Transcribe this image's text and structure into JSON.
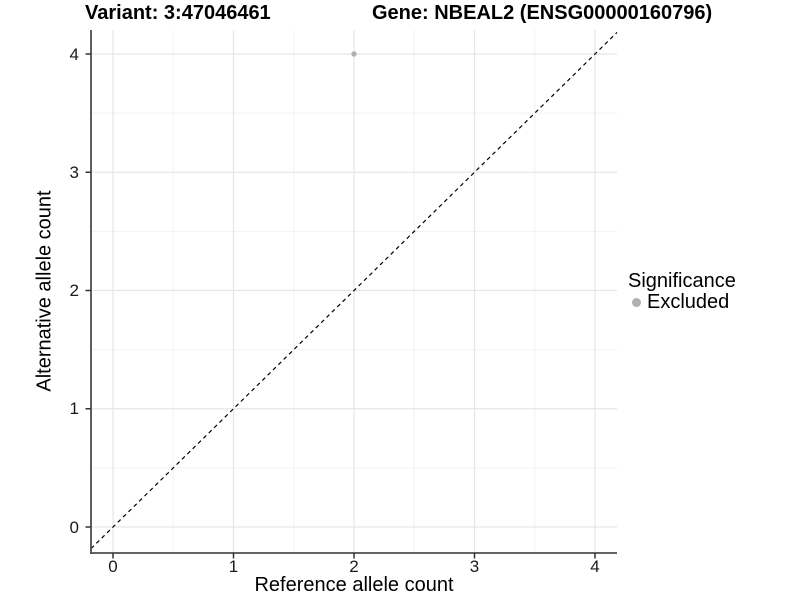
{
  "chart_data": {
    "type": "scatter",
    "titles": {
      "left": "Variant: 3:47046461",
      "right": "Gene: NBEAL2 (ENSG00000160796)"
    },
    "xlabel": "Reference allele count",
    "ylabel": "Alternative allele count",
    "xlim": [
      -0.2,
      4.2
    ],
    "ylim": [
      -0.2,
      4.2
    ],
    "x_ticks": [
      0,
      1,
      2,
      3,
      4
    ],
    "y_ticks": [
      0,
      1,
      2,
      3,
      4
    ],
    "x_minor_ticks": [
      0.5,
      1.5,
      2.5,
      3.5
    ],
    "y_minor_ticks": [
      0.5,
      1.5,
      2.5,
      3.5
    ],
    "grid": "major+minor",
    "reference_line": {
      "type": "identity y=x",
      "style": "dashed",
      "color": "#000000"
    },
    "points": [
      {
        "x": 2,
        "y": 4,
        "significance": "Excluded"
      }
    ],
    "legend": {
      "title": "Significance",
      "position": "right",
      "entries": [
        {
          "label": "Excluded",
          "marker": "circle",
          "color": "#b0b0b0"
        }
      ]
    },
    "colors": {
      "background": "#ffffff",
      "grid_major": "#e6e6e6",
      "grid_minor": "#f2f2f2",
      "axis_line": "#4d4d4d",
      "tick_mark": "#333333",
      "point": "#b0b0b0"
    }
  }
}
